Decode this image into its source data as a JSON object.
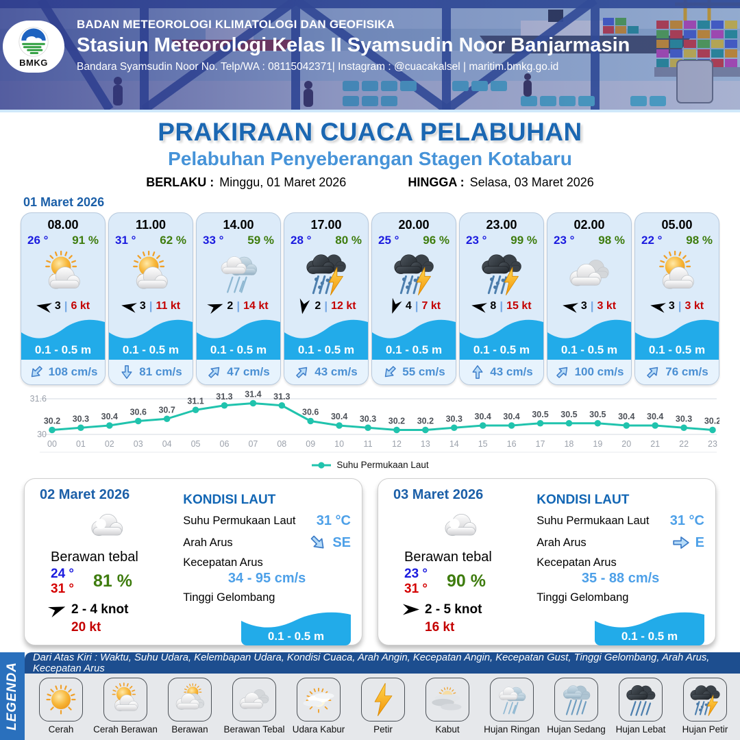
{
  "header": {
    "logo_text": "BMKG",
    "agency": "BADAN METEOROLOGI KLIMATOLOGI DAN GEOFISIKA",
    "station": "Stasiun Meteorologi Kelas II Syamsudin Noor Banjarmasin",
    "contact": "Bandara Syamsudin Noor No. Telp/WA : 08115042371| Instagram : @cuacakalsel | maritim.bmkg.go.id"
  },
  "title": {
    "main": "PRAKIRAAN CUACA PELABUHAN",
    "subtitle": "Pelabuhan Penyeberangan Stagen Kotabaru",
    "valid_label": "BERLAKU :",
    "valid_value": "Minggu, 01 Maret 2026",
    "until_label": "HINGGA :",
    "until_value": "Selasa, 03 Maret 2026"
  },
  "forecast_date": "01 Maret 2026",
  "hourly_cards": [
    {
      "time": "08.00",
      "temp": "26 °",
      "humidity": "91 %",
      "icon": "cerah-berawan",
      "wind_dir_deg": 190,
      "wind_speed": "3",
      "gust": "6 kt",
      "wave": "0.1 - 0.5 m",
      "current_dir_deg": 135,
      "current": "108 cm/s"
    },
    {
      "time": "11.00",
      "temp": "31 °",
      "humidity": "62 %",
      "icon": "cerah-berawan",
      "wind_dir_deg": 190,
      "wind_speed": "3",
      "gust": "11 kt",
      "wave": "0.1 - 0.5 m",
      "current_dir_deg": 90,
      "current": "81 cm/s"
    },
    {
      "time": "14.00",
      "temp": "33 °",
      "humidity": "59 %",
      "icon": "hujan-ringan",
      "wind_dir_deg": 340,
      "wind_speed": "2",
      "gust": "14 kt",
      "wave": "0.1 - 0.5 m",
      "current_dir_deg": -45,
      "current": "47 cm/s"
    },
    {
      "time": "17.00",
      "temp": "28 °",
      "humidity": "80 %",
      "icon": "hujan-petir",
      "wind_dir_deg": 100,
      "wind_speed": "2",
      "gust": "12 kt",
      "wave": "0.1 - 0.5 m",
      "current_dir_deg": -45,
      "current": "43 cm/s"
    },
    {
      "time": "20.00",
      "temp": "25 °",
      "humidity": "96 %",
      "icon": "hujan-petir",
      "wind_dir_deg": 110,
      "wind_speed": "4",
      "gust": "7 kt",
      "wave": "0.1 - 0.5 m",
      "current_dir_deg": 135,
      "current": "55 cm/s"
    },
    {
      "time": "23.00",
      "temp": "23 °",
      "humidity": "99 %",
      "icon": "hujan-petir",
      "wind_dir_deg": 190,
      "wind_speed": "8",
      "gust": "15 kt",
      "wave": "0.1 - 0.5 m",
      "current_dir_deg": -90,
      "current": "43 cm/s"
    },
    {
      "time": "02.00",
      "temp": "23 °",
      "humidity": "98 %",
      "icon": "berawan-tebal",
      "wind_dir_deg": 190,
      "wind_speed": "3",
      "gust": "3 kt",
      "wave": "0.1 - 0.5 m",
      "current_dir_deg": -45,
      "current": "100 cm/s"
    },
    {
      "time": "05.00",
      "temp": "22 °",
      "humidity": "98 %",
      "icon": "cerah-berawan",
      "wind_dir_deg": 190,
      "wind_speed": "3",
      "gust": "3 kt",
      "wave": "0.1 - 0.5 m",
      "current_dir_deg": -45,
      "current": "76 cm/s"
    }
  ],
  "chart_data": {
    "type": "line",
    "x": [
      "00",
      "01",
      "02",
      "03",
      "04",
      "05",
      "06",
      "07",
      "08",
      "09",
      "10",
      "11",
      "12",
      "13",
      "14",
      "15",
      "16",
      "17",
      "18",
      "19",
      "20",
      "21",
      "22",
      "23"
    ],
    "values": [
      30.2,
      30.3,
      30.4,
      30.6,
      30.7,
      31.1,
      31.3,
      31.4,
      31.3,
      30.6,
      30.4,
      30.3,
      30.2,
      30.2,
      30.3,
      30.4,
      30.4,
      30.5,
      30.5,
      30.5,
      30.4,
      30.4,
      30.3,
      30.2
    ],
    "series_name": "Suhu Permukaan Laut",
    "ylim": [
      30,
      31.6
    ],
    "ytick_labels": [
      "30",
      "31.6"
    ],
    "line_color": "#20c3ad",
    "legend_position": "bottom",
    "grid": "horizontal"
  },
  "daily_cards": [
    {
      "date": "02 Maret 2026",
      "condition": "Berawan tebal",
      "icon": "berawan-tebal",
      "temp_min": "24 °",
      "temp_max": "31 °",
      "humidity": "81 %",
      "wind_dir_deg": -20,
      "wind": "2  - 4 knot",
      "gust": "20 kt",
      "sea": {
        "heading": "KONDISI LAUT",
        "sst_label": "Suhu Permukaan Laut",
        "sst": "31 °C",
        "dir_label": "Arah Arus",
        "dir": "SE",
        "dir_deg": 45,
        "speed_label": "Kecepatan Arus",
        "speed": "34 - 95 cm/s",
        "wave_label": "Tinggi Gelombang",
        "wave": "0.1 - 0.5 m"
      }
    },
    {
      "date": "03 Maret 2026",
      "condition": "Berawan tebal",
      "icon": "berawan-tebal",
      "temp_min": "23 °",
      "temp_max": "31 °",
      "humidity": "90 %",
      "wind_dir_deg": 0,
      "wind": "2  - 5 knot",
      "gust": "16 kt",
      "sea": {
        "heading": "KONDISI LAUT",
        "sst_label": "Suhu Permukaan Laut",
        "sst": "31 °C",
        "dir_label": "Arah Arus",
        "dir": "E",
        "dir_deg": 0,
        "speed_label": "Kecepatan Arus",
        "speed": "35 - 88 cm/s",
        "wave_label": "Tinggi Gelombang",
        "wave": "0.1 - 0.5 m"
      }
    }
  ],
  "legend": {
    "tab": "LEGENDA",
    "note": "Dari Atas Kiri : Waktu, Suhu Udara, Kelembapan Udara, Kondisi Cuaca, Arah Angin, Kecepatan Angin, Kecepatan Gust, Tinggi Gelombang, Arah Arus, Kecepatan Arus",
    "items": [
      {
        "label": "Cerah",
        "icon": "cerah"
      },
      {
        "label": "Cerah Berawan",
        "icon": "cerah-berawan"
      },
      {
        "label": "Berawan",
        "icon": "berawan"
      },
      {
        "label": "Berawan Tebal",
        "icon": "berawan-tebal"
      },
      {
        "label": "Udara Kabur",
        "icon": "udara-kabur"
      },
      {
        "label": "Petir",
        "icon": "petir"
      },
      {
        "label": "Kabut",
        "icon": "kabut"
      },
      {
        "label": "Hujan Ringan",
        "icon": "hujan-ringan"
      },
      {
        "label": "Hujan Sedang",
        "icon": "hujan-sedang"
      },
      {
        "label": "Hujan Lebat",
        "icon": "hujan-lebat"
      },
      {
        "label": "Hujan Petir",
        "icon": "hujan-petir"
      }
    ]
  },
  "colors": {
    "accent_blue": "#1b67b2",
    "light_blue": "#4693d8",
    "wave_blue": "#22abe9",
    "temp_blue": "#1a1adf",
    "humidity_green": "#3e7c0e",
    "gust_red": "#c40000",
    "chart_teal": "#20c3ad",
    "legend_bar": "#1d4e8f",
    "legend_tab": "#2a70bd"
  }
}
